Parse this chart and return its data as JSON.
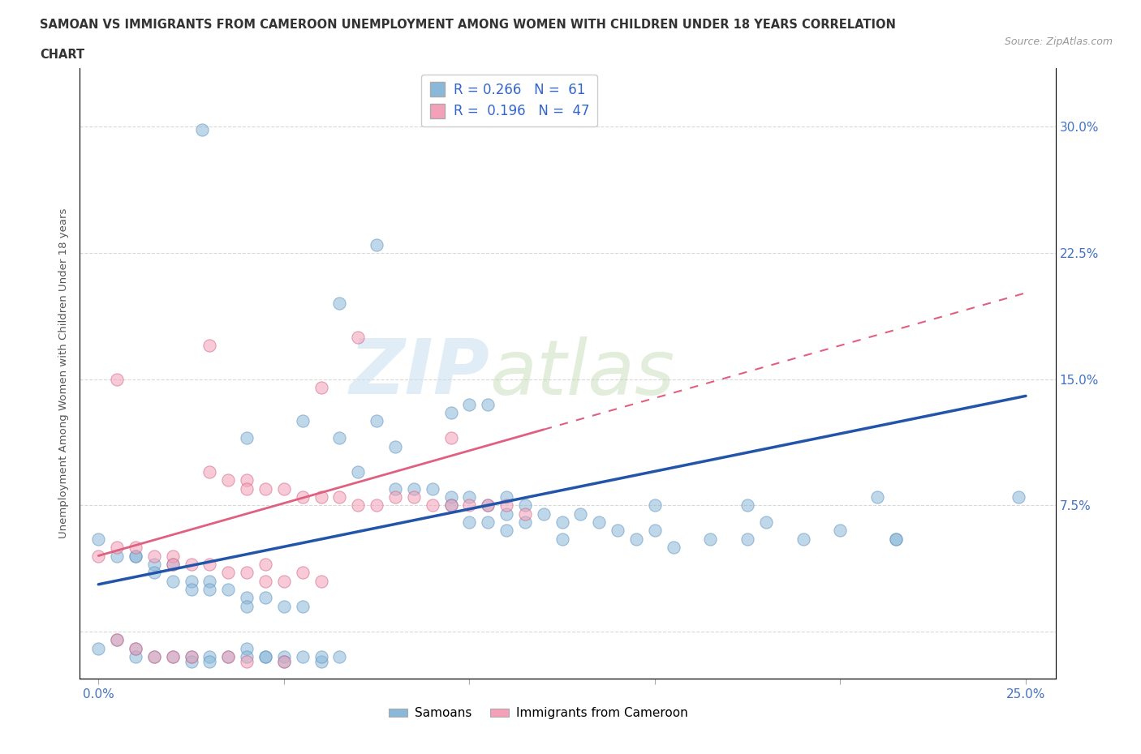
{
  "title_line1": "SAMOAN VS IMMIGRANTS FROM CAMEROON UNEMPLOYMENT AMONG WOMEN WITH CHILDREN UNDER 18 YEARS CORRELATION",
  "title_line2": "CHART",
  "source_text": "Source: ZipAtlas.com",
  "ylabel": "Unemployment Among Women with Children Under 18 years",
  "xlim": [
    -0.005,
    0.258
  ],
  "ylim": [
    -0.028,
    0.335
  ],
  "xticks": [
    0.0,
    0.05,
    0.1,
    0.15,
    0.2,
    0.25
  ],
  "yticks": [
    0.0,
    0.075,
    0.15,
    0.225,
    0.3
  ],
  "xticklabels": [
    "0.0%",
    "",
    "",
    "",
    "",
    "25.0%"
  ],
  "yticklabels_right": [
    "",
    "7.5%",
    "15.0%",
    "22.5%",
    "30.0%"
  ],
  "blue_color": "#8ab8d8",
  "pink_color": "#f4a0b8",
  "legend_label_blue": "Samoans",
  "legend_label_pink": "Immigrants from Cameroon",
  "watermark_zip": "ZIP",
  "watermark_atlas": "atlas",
  "blue_scatter": [
    [
      0.028,
      0.298
    ],
    [
      0.075,
      0.23
    ],
    [
      0.065,
      0.195
    ],
    [
      0.095,
      0.13
    ],
    [
      0.055,
      0.125
    ],
    [
      0.075,
      0.125
    ],
    [
      0.04,
      0.115
    ],
    [
      0.1,
      0.135
    ],
    [
      0.105,
      0.135
    ],
    [
      0.08,
      0.11
    ],
    [
      0.065,
      0.115
    ],
    [
      0.07,
      0.095
    ],
    [
      0.08,
      0.085
    ],
    [
      0.085,
      0.085
    ],
    [
      0.09,
      0.085
    ],
    [
      0.095,
      0.08
    ],
    [
      0.095,
      0.075
    ],
    [
      0.1,
      0.08
    ],
    [
      0.1,
      0.065
    ],
    [
      0.105,
      0.075
    ],
    [
      0.105,
      0.065
    ],
    [
      0.11,
      0.08
    ],
    [
      0.11,
      0.07
    ],
    [
      0.11,
      0.06
    ],
    [
      0.115,
      0.065
    ],
    [
      0.12,
      0.07
    ],
    [
      0.125,
      0.065
    ],
    [
      0.125,
      0.055
    ],
    [
      0.13,
      0.07
    ],
    [
      0.135,
      0.065
    ],
    [
      0.14,
      0.06
    ],
    [
      0.145,
      0.055
    ],
    [
      0.15,
      0.06
    ],
    [
      0.155,
      0.05
    ],
    [
      0.165,
      0.055
    ],
    [
      0.175,
      0.055
    ],
    [
      0.18,
      0.065
    ],
    [
      0.19,
      0.055
    ],
    [
      0.2,
      0.06
    ],
    [
      0.21,
      0.08
    ],
    [
      0.215,
      0.055
    ],
    [
      0.215,
      0.055
    ],
    [
      0.175,
      0.075
    ],
    [
      0.0,
      0.055
    ],
    [
      0.005,
      0.045
    ],
    [
      0.01,
      0.045
    ],
    [
      0.01,
      0.045
    ],
    [
      0.015,
      0.04
    ],
    [
      0.015,
      0.035
    ],
    [
      0.02,
      0.04
    ],
    [
      0.02,
      0.03
    ],
    [
      0.025,
      0.03
    ],
    [
      0.025,
      0.025
    ],
    [
      0.03,
      0.03
    ],
    [
      0.03,
      0.025
    ],
    [
      0.035,
      0.025
    ],
    [
      0.04,
      0.02
    ],
    [
      0.04,
      0.015
    ],
    [
      0.045,
      0.02
    ],
    [
      0.05,
      0.015
    ],
    [
      0.055,
      0.015
    ],
    [
      0.0,
      -0.01
    ],
    [
      0.005,
      -0.005
    ],
    [
      0.01,
      -0.01
    ],
    [
      0.01,
      -0.015
    ],
    [
      0.015,
      -0.015
    ],
    [
      0.02,
      -0.015
    ],
    [
      0.025,
      -0.015
    ],
    [
      0.025,
      -0.018
    ],
    [
      0.03,
      -0.015
    ],
    [
      0.03,
      -0.018
    ],
    [
      0.035,
      -0.015
    ],
    [
      0.04,
      -0.01
    ],
    [
      0.04,
      -0.015
    ],
    [
      0.045,
      -0.015
    ],
    [
      0.045,
      -0.015
    ],
    [
      0.05,
      -0.015
    ],
    [
      0.05,
      -0.018
    ],
    [
      0.055,
      -0.015
    ],
    [
      0.06,
      -0.018
    ],
    [
      0.06,
      -0.015
    ],
    [
      0.065,
      -0.015
    ],
    [
      0.115,
      0.075
    ],
    [
      0.15,
      0.075
    ],
    [
      0.248,
      0.08
    ]
  ],
  "pink_scatter": [
    [
      0.005,
      0.15
    ],
    [
      0.03,
      0.17
    ],
    [
      0.07,
      0.175
    ],
    [
      0.06,
      0.145
    ],
    [
      0.095,
      0.115
    ],
    [
      0.03,
      0.095
    ],
    [
      0.035,
      0.09
    ],
    [
      0.04,
      0.09
    ],
    [
      0.04,
      0.085
    ],
    [
      0.045,
      0.085
    ],
    [
      0.05,
      0.085
    ],
    [
      0.055,
      0.08
    ],
    [
      0.06,
      0.08
    ],
    [
      0.065,
      0.08
    ],
    [
      0.07,
      0.075
    ],
    [
      0.075,
      0.075
    ],
    [
      0.08,
      0.08
    ],
    [
      0.085,
      0.08
    ],
    [
      0.09,
      0.075
    ],
    [
      0.095,
      0.075
    ],
    [
      0.1,
      0.075
    ],
    [
      0.105,
      0.075
    ],
    [
      0.11,
      0.075
    ],
    [
      0.115,
      0.07
    ],
    [
      0.0,
      0.045
    ],
    [
      0.005,
      0.05
    ],
    [
      0.01,
      0.05
    ],
    [
      0.015,
      0.045
    ],
    [
      0.02,
      0.045
    ],
    [
      0.02,
      0.04
    ],
    [
      0.025,
      0.04
    ],
    [
      0.03,
      0.04
    ],
    [
      0.035,
      0.035
    ],
    [
      0.04,
      0.035
    ],
    [
      0.045,
      0.04
    ],
    [
      0.045,
      0.03
    ],
    [
      0.05,
      0.03
    ],
    [
      0.055,
      0.035
    ],
    [
      0.06,
      0.03
    ],
    [
      0.005,
      -0.005
    ],
    [
      0.01,
      -0.01
    ],
    [
      0.015,
      -0.015
    ],
    [
      0.02,
      -0.015
    ],
    [
      0.025,
      -0.015
    ],
    [
      0.035,
      -0.015
    ],
    [
      0.04,
      -0.018
    ],
    [
      0.05,
      -0.018
    ]
  ],
  "blue_line_x": [
    0.0,
    0.25
  ],
  "blue_line_y": [
    0.028,
    0.14
  ],
  "pink_line_x": [
    0.0,
    0.12
  ],
  "pink_line_y": [
    0.045,
    0.12
  ],
  "grid_color": "#d0d0d0",
  "title_color": "#333333",
  "tick_color": "#4472c4",
  "background_color": "#ffffff"
}
